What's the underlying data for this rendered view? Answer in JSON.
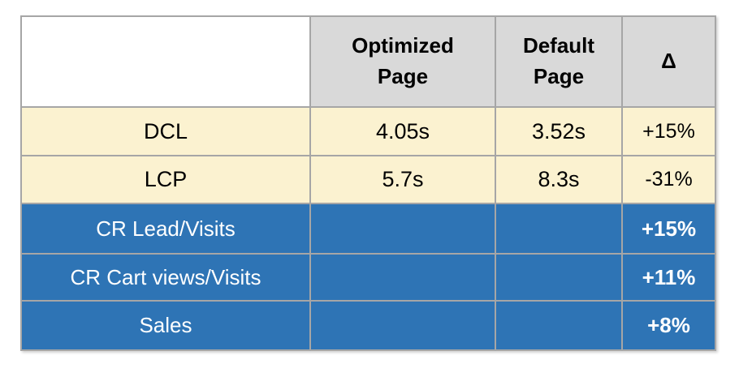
{
  "table": {
    "columns": [
      {
        "label": ""
      },
      {
        "label": "Optimized Page"
      },
      {
        "label": "Default Page"
      },
      {
        "label": "Δ"
      }
    ],
    "rows": [
      {
        "label": "DCL",
        "optimized": "4.05s",
        "default": "3.52s",
        "delta": "+15%",
        "section": "metrics"
      },
      {
        "label": "LCP",
        "optimized": "5.7s",
        "default": "8.3s",
        "delta": "-31%",
        "section": "metrics"
      },
      {
        "label": "CR Lead/Visits",
        "optimized": "",
        "default": "",
        "delta": "+15%",
        "section": "business"
      },
      {
        "label": "CR Cart views/Visits",
        "optimized": "",
        "default": "",
        "delta": "+11%",
        "section": "business"
      },
      {
        "label": "Sales",
        "optimized": "",
        "default": "",
        "delta": "+8%",
        "section": "business"
      }
    ],
    "colors": {
      "header_bg": "#d9d9d9",
      "metrics_bg": "#fbf2d0",
      "business_bg": "#2e74b5",
      "border": "#a6a6a6",
      "header_text": "#000000",
      "metrics_text": "#000000",
      "business_text": "#ffffff"
    }
  }
}
